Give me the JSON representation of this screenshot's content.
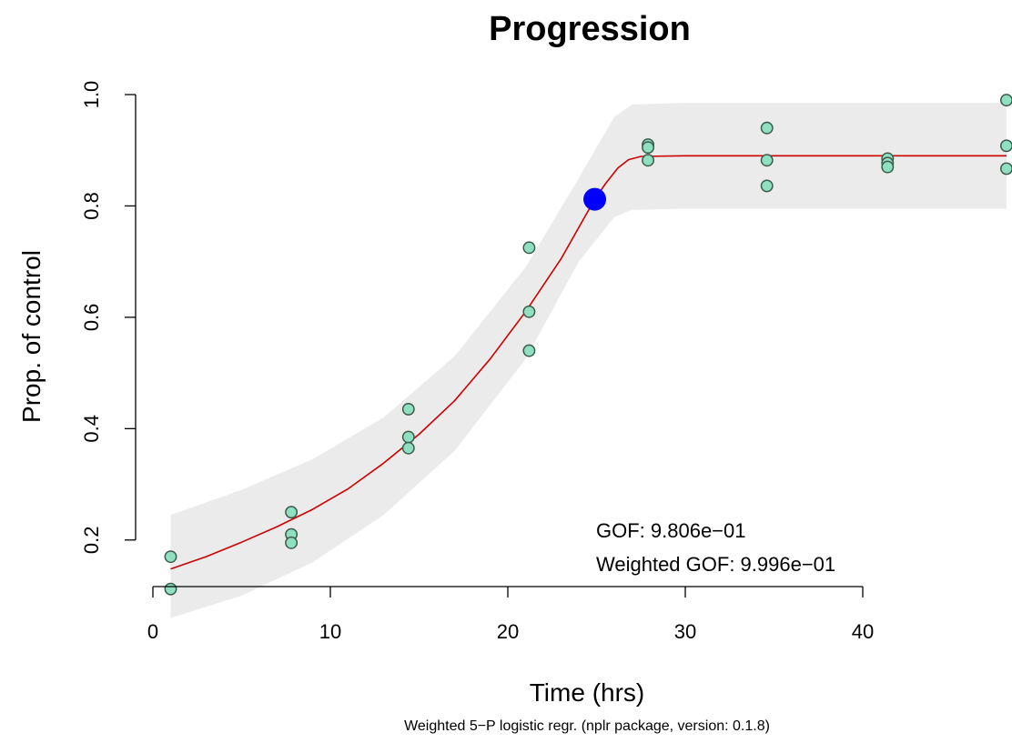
{
  "chart_data": {
    "type": "scatter",
    "title": "Progression",
    "xlabel": "Time (hrs)",
    "ylabel": "Prop. of control",
    "subtitle": "Weighted 5−P logistic regr. (nplr package, version: 0.1.8)",
    "xlim": [
      0,
      48
    ],
    "ylim": [
      0.1,
      1.0
    ],
    "xticks": [
      {
        "value": 0,
        "label": "0"
      },
      {
        "value": 10,
        "label": "10"
      },
      {
        "value": 20,
        "label": "20"
      },
      {
        "value": 30,
        "label": "30"
      },
      {
        "value": 40,
        "label": "40"
      }
    ],
    "yticks": [
      {
        "value": 0.2,
        "label": "0.2"
      },
      {
        "value": 0.4,
        "label": "0.4"
      },
      {
        "value": 0.6,
        "label": "0.6"
      },
      {
        "value": 0.8,
        "label": "0.8"
      },
      {
        "value": 1.0,
        "label": "1.0"
      }
    ],
    "grid": false,
    "points": [
      {
        "x": 1.0,
        "y": 0.17
      },
      {
        "x": 1.0,
        "y": 0.112
      },
      {
        "x": 7.8,
        "y": 0.25
      },
      {
        "x": 7.8,
        "y": 0.21
      },
      {
        "x": 7.8,
        "y": 0.195
      },
      {
        "x": 14.4,
        "y": 0.435
      },
      {
        "x": 14.4,
        "y": 0.385
      },
      {
        "x": 14.4,
        "y": 0.365
      },
      {
        "x": 21.2,
        "y": 0.725
      },
      {
        "x": 21.2,
        "y": 0.61
      },
      {
        "x": 21.2,
        "y": 0.54
      },
      {
        "x": 27.9,
        "y": 0.91
      },
      {
        "x": 27.9,
        "y": 0.905
      },
      {
        "x": 27.9,
        "y": 0.882
      },
      {
        "x": 34.6,
        "y": 0.94
      },
      {
        "x": 34.6,
        "y": 0.882
      },
      {
        "x": 34.6,
        "y": 0.836
      },
      {
        "x": 41.4,
        "y": 0.885
      },
      {
        "x": 41.4,
        "y": 0.877
      },
      {
        "x": 41.4,
        "y": 0.87
      },
      {
        "x": 48.1,
        "y": 0.99
      },
      {
        "x": 48.1,
        "y": 0.908
      },
      {
        "x": 48.1,
        "y": 0.867
      }
    ],
    "fit_curve": [
      {
        "x": 1,
        "y": 0.148
      },
      {
        "x": 3,
        "y": 0.17
      },
      {
        "x": 5,
        "y": 0.196
      },
      {
        "x": 7,
        "y": 0.224
      },
      {
        "x": 9,
        "y": 0.255
      },
      {
        "x": 11,
        "y": 0.292
      },
      {
        "x": 13,
        "y": 0.338
      },
      {
        "x": 15,
        "y": 0.39
      },
      {
        "x": 17,
        "y": 0.45
      },
      {
        "x": 19,
        "y": 0.525
      },
      {
        "x": 21,
        "y": 0.61
      },
      {
        "x": 23,
        "y": 0.705
      },
      {
        "x": 24.9,
        "y": 0.812
      },
      {
        "x": 25.5,
        "y": 0.84
      },
      {
        "x": 26.2,
        "y": 0.868
      },
      {
        "x": 26.8,
        "y": 0.883
      },
      {
        "x": 27.5,
        "y": 0.889
      },
      {
        "x": 30,
        "y": 0.89
      },
      {
        "x": 40,
        "y": 0.89
      },
      {
        "x": 48.1,
        "y": 0.89
      }
    ],
    "confidence_band": {
      "upper": [
        {
          "x": 1,
          "y": 0.245
        },
        {
          "x": 5,
          "y": 0.29
        },
        {
          "x": 9,
          "y": 0.345
        },
        {
          "x": 13,
          "y": 0.42
        },
        {
          "x": 17,
          "y": 0.53
        },
        {
          "x": 21,
          "y": 0.69
        },
        {
          "x": 24,
          "y": 0.85
        },
        {
          "x": 26,
          "y": 0.96
        },
        {
          "x": 27,
          "y": 0.982
        },
        {
          "x": 30,
          "y": 0.985
        },
        {
          "x": 48.1,
          "y": 0.985
        }
      ],
      "lower": [
        {
          "x": 1,
          "y": 0.06
        },
        {
          "x": 5,
          "y": 0.1
        },
        {
          "x": 9,
          "y": 0.16
        },
        {
          "x": 13,
          "y": 0.245
        },
        {
          "x": 17,
          "y": 0.36
        },
        {
          "x": 21,
          "y": 0.525
        },
        {
          "x": 24,
          "y": 0.7
        },
        {
          "x": 26,
          "y": 0.78
        },
        {
          "x": 27,
          "y": 0.793
        },
        {
          "x": 30,
          "y": 0.795
        },
        {
          "x": 48.1,
          "y": 0.795
        }
      ],
      "color": "#ebebeb"
    },
    "highlight_point": {
      "x": 24.9,
      "y": 0.812,
      "color": "#0000ff"
    },
    "annotations": [
      "GOF: 9.806e−01",
      "Weighted GOF: 9.996e−01"
    ],
    "colors": {
      "point_fill": "#8ee0c0",
      "point_stroke": "#3a5a4a",
      "curve": "#cc0000",
      "band": "#ebebeb",
      "axis": "#000000"
    }
  }
}
